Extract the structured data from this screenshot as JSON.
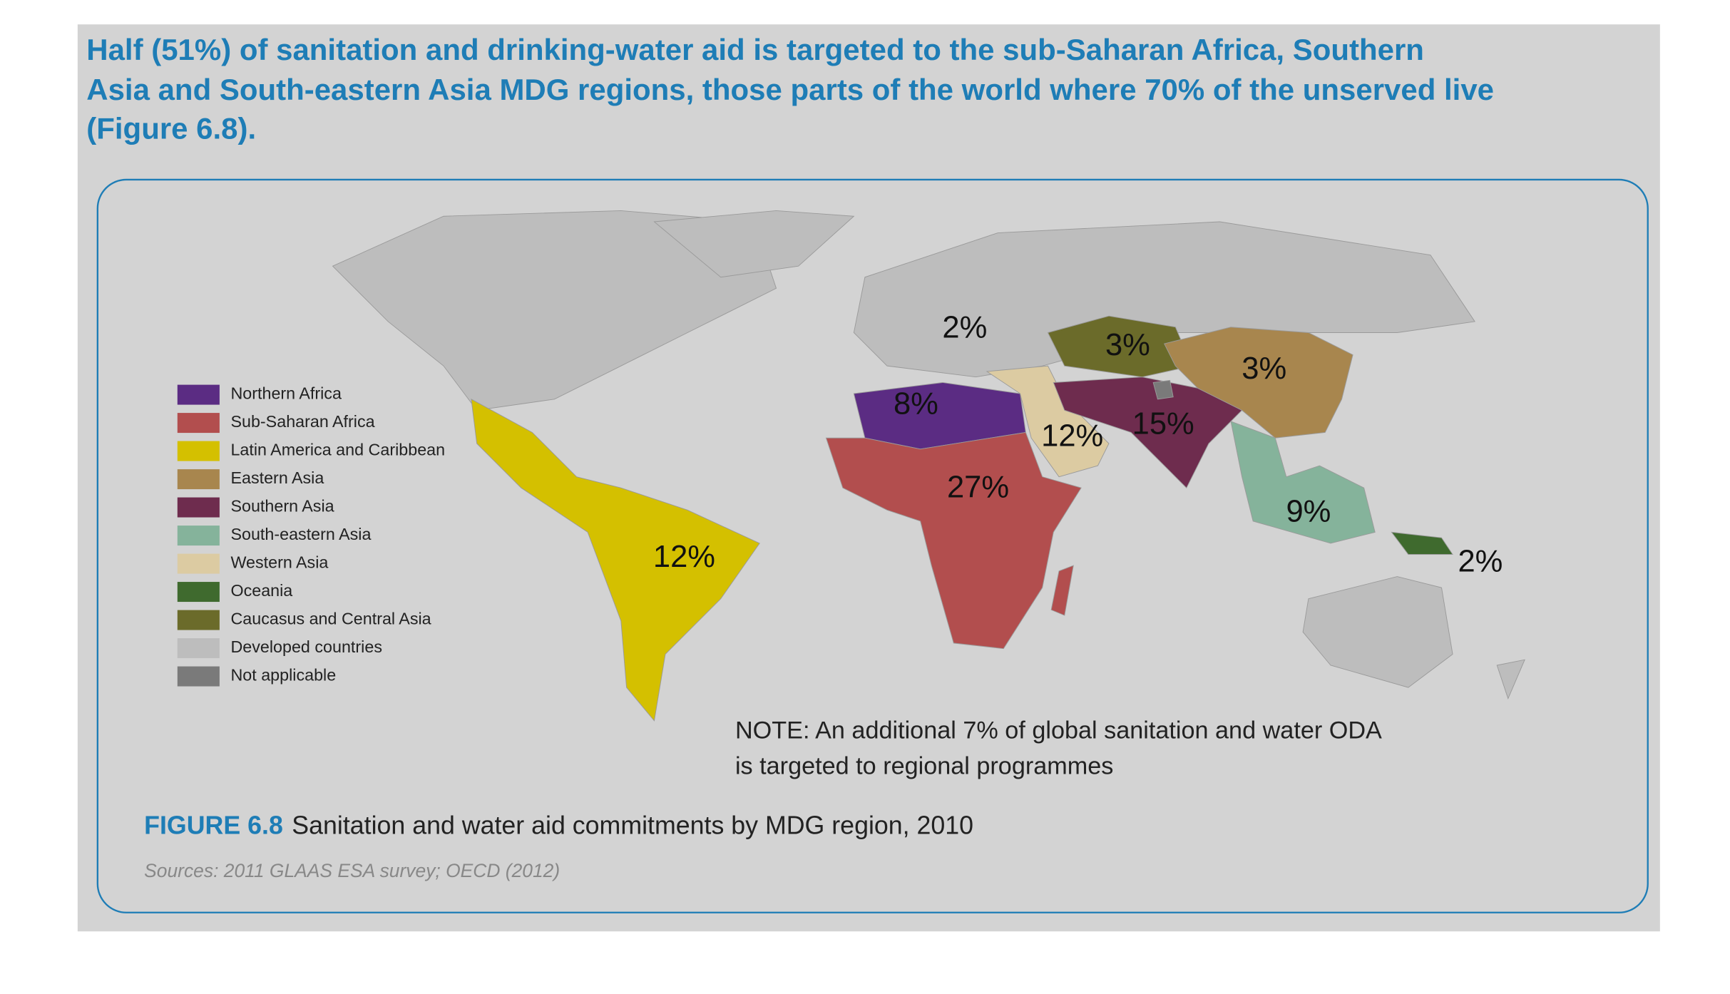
{
  "header": {
    "title_lines": [
      "Half (51%) of sanitation and drinking-water aid is targeted to the sub-Saharan Africa, Southern",
      "Asia and South-eastern Asia MDG regions, those parts of the world where 70% of the unserved live",
      "(Figure 6.8)."
    ]
  },
  "map": {
    "legend": [
      {
        "label": "Northern Africa",
        "color": "#5b2c83"
      },
      {
        "label": "Sub-Saharan Africa",
        "color": "#b24e4e"
      },
      {
        "label": "Latin America and Caribbean",
        "color": "#d4c000"
      },
      {
        "label": "Eastern Asia",
        "color": "#a8864e"
      },
      {
        "label": "Southern Asia",
        "color": "#6e2c4e"
      },
      {
        "label": "South-eastern Asia",
        "color": "#85b39b"
      },
      {
        "label": "Western Asia",
        "color": "#dccba2"
      },
      {
        "label": "Oceania",
        "color": "#3f6a2e"
      },
      {
        "label": "Caucasus and Central Asia",
        "color": "#6b6b2a"
      },
      {
        "label": "Developed countries",
        "color": "#bdbdbd"
      },
      {
        "label": "Not applicable",
        "color": "#7a7a7a"
      }
    ],
    "labels": [
      "2%",
      "3%",
      "3%",
      "8%",
      "12%",
      "15%",
      "27%",
      "9%",
      "12%",
      "2%"
    ]
  },
  "note_lines": [
    "NOTE: An additional 7% of global sanitation and water ODA",
    "is targeted to regional programmes"
  ],
  "figure": {
    "number": "FIGURE 6.8",
    "caption": "Sanitation and water aid commitments by MDG region, 2010"
  },
  "sources": "Sources: 2011 GLAAS ESA survey; OECD (2012)"
}
